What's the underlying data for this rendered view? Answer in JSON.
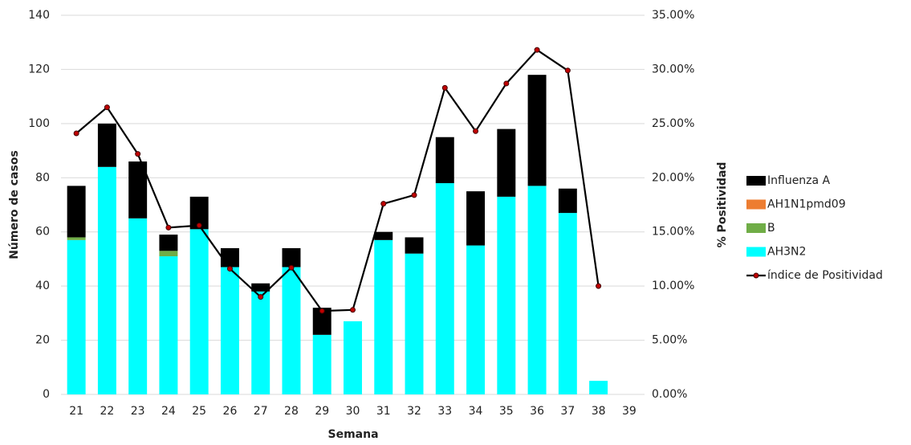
{
  "chart_data": {
    "type": "bar",
    "x_label": "Semana",
    "y_label": "Número de casos",
    "y2_label": "% Positividad",
    "categories": [
      "21",
      "22",
      "23",
      "24",
      "25",
      "26",
      "27",
      "28",
      "29",
      "30",
      "31",
      "32",
      "33",
      "34",
      "35",
      "36",
      "37",
      "38",
      "39"
    ],
    "stacked": true,
    "grid": true,
    "legend": "right",
    "ylim": [
      0,
      140
    ],
    "yticks": [
      0,
      20,
      40,
      60,
      80,
      100,
      120,
      140
    ],
    "y2lim": [
      0,
      35
    ],
    "y2ticks": [
      {
        "value": 0,
        "label": "0.00%"
      },
      {
        "value": 5,
        "label": "5.00%"
      },
      {
        "value": 10,
        "label": "10.00%"
      },
      {
        "value": 15,
        "label": "15.00%"
      },
      {
        "value": 20,
        "label": "20.00%"
      },
      {
        "value": 25,
        "label": "25.00%"
      },
      {
        "value": 30,
        "label": "30.00%"
      },
      {
        "value": 35,
        "label": "35.00%"
      }
    ],
    "series": [
      {
        "name": "AH3N2",
        "color": "#00ffff",
        "values": [
          57,
          84,
          65,
          51,
          61,
          47,
          38,
          47,
          22,
          27,
          57,
          52,
          78,
          55,
          73,
          77,
          67,
          5,
          null
        ]
      },
      {
        "name": "B",
        "color": "#70ad47",
        "values": [
          1,
          0,
          0,
          2,
          0,
          0,
          0,
          0,
          0,
          0,
          0,
          0,
          0,
          0,
          0,
          0,
          0,
          0,
          null
        ]
      },
      {
        "name": "AH1N1pmd09",
        "color": "#ed7d31",
        "values": [
          0,
          0,
          0,
          0,
          0,
          0,
          0,
          0,
          0,
          0,
          0,
          0,
          0,
          0,
          0,
          0,
          0,
          0,
          null
        ]
      },
      {
        "name": "Influenza A",
        "color": "#000000",
        "values": [
          19,
          16,
          21,
          6,
          12,
          7,
          3,
          7,
          10,
          0,
          3,
          6,
          17,
          20,
          25,
          41,
          9,
          0,
          null
        ]
      },
      {
        "name": "índice de Positividad",
        "type": "line",
        "axis": "y2",
        "color": "#000000",
        "marker_color": "#c00000",
        "values": [
          24.1,
          26.5,
          22.2,
          15.4,
          15.6,
          11.6,
          9.0,
          11.7,
          7.7,
          7.8,
          17.6,
          18.4,
          28.3,
          24.3,
          28.7,
          31.8,
          29.9,
          10.0,
          null
        ]
      }
    ]
  }
}
